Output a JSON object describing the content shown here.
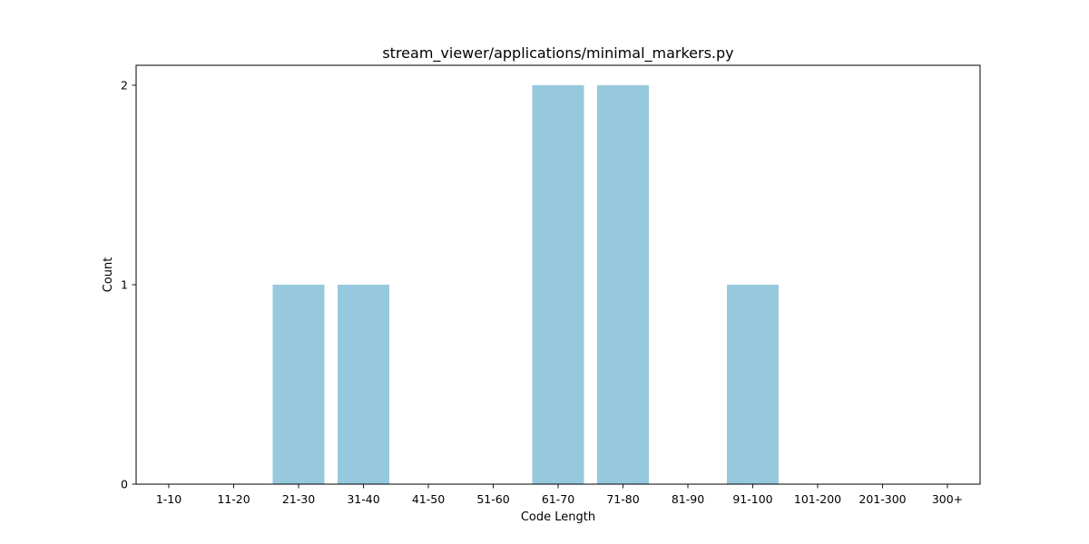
{
  "chart_data": {
    "type": "bar",
    "title": "stream_viewer/applications/minimal_markers.py",
    "xlabel": "Code Length",
    "ylabel": "Count",
    "categories": [
      "1-10",
      "11-20",
      "21-30",
      "31-40",
      "41-50",
      "51-60",
      "61-70",
      "71-80",
      "81-90",
      "91-100",
      "101-200",
      "201-300",
      "300+"
    ],
    "values": [
      0,
      0,
      1,
      1,
      0,
      0,
      2,
      2,
      0,
      1,
      0,
      0,
      0
    ],
    "ylim": [
      0,
      2.1
    ],
    "yticks": [
      0,
      1,
      2
    ],
    "bar_color": "#96c9de",
    "grid": false,
    "legend": "none"
  }
}
